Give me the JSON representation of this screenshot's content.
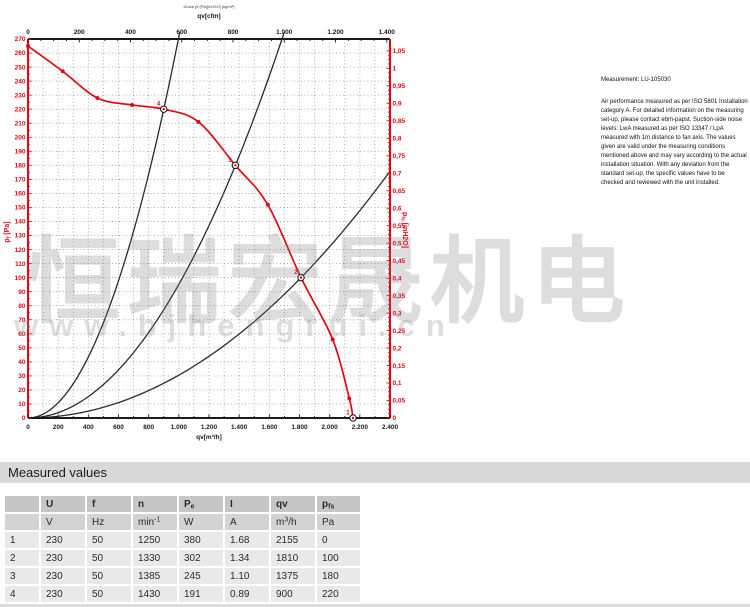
{
  "watermark": {
    "cn_text": "恒瑞宏晟机电",
    "url_text": "www.bjhengrui.cn"
  },
  "notes": {
    "measurement": "Measurement: LU-105030",
    "paragraph": "Air performance measured as per ISO 5801 Installation category A. For detailed information on the measuring set-up, please contact ebm-papst. Suction-side noise levels: LwA measured as per ISO 13347 / LpA measured with 1m distance to fan axis. The values given are valid under the measuring conditions mentioned above and may vary according to the actual installation situation. With any deviation from the standard set-up, the specific values have to be checked and reviewed with the unit installed."
  },
  "chart_data": {
    "type": "line",
    "header_note": "Druck pf (Pa)[inH2O] (kg/m³)",
    "x_top": {
      "label": "qv[cfm]",
      "min": 0,
      "max": 1400,
      "label_step": 200,
      "minor_step": 50
    },
    "x_bottom": {
      "label": "qv[m³/h]",
      "min": 0,
      "max": 2400,
      "label_step": 200,
      "minor_step": 100
    },
    "y_left": {
      "label_main": "p",
      "label_sub": "f",
      "label_unit": " [Pa]",
      "min": 0,
      "max": 270,
      "label_step": 10,
      "minor_step": 5
    },
    "y_right": {
      "label_main": "p",
      "label_sub": "fs",
      "label_unit": " [inH2O]",
      "min": 0,
      "max": 1.05,
      "label_step": 0.05,
      "minor_step": 0.0125
    },
    "unit_conversion": {
      "cfm_per_m3h": 0.588578,
      "pa_per_inH2O": 249.0889
    },
    "grid": {
      "x_step": 100,
      "y_step": 10
    },
    "fan_curve": {
      "points": [
        [
          0,
          265
        ],
        [
          230,
          247
        ],
        [
          460,
          228
        ],
        [
          690,
          223
        ],
        [
          900,
          220
        ],
        [
          1130,
          211
        ],
        [
          1375,
          180
        ],
        [
          1590,
          152
        ],
        [
          1810,
          100
        ],
        [
          2020,
          56
        ],
        [
          2130,
          14
        ],
        [
          2155,
          0
        ]
      ]
    },
    "measured_points": [
      {
        "label": "1",
        "qv": 2155,
        "pf": 0
      },
      {
        "label": "2",
        "qv": 1810,
        "pf": 100
      },
      {
        "label": "3",
        "qv": 1375,
        "pf": 180
      },
      {
        "label": "4",
        "qv": 900,
        "pf": 220
      }
    ],
    "system_curves": [
      {
        "through": [
          900,
          220
        ]
      },
      {
        "through": [
          1375,
          180
        ]
      },
      {
        "through": [
          1810,
          100
        ]
      }
    ],
    "colors": {
      "curve_red": "#e30613",
      "axis_red": "#e30613",
      "axis_black": "#1a1a1a",
      "grid_gray": "#8a8a8a",
      "system_black": "#2a2a2a"
    }
  },
  "table": {
    "title": "Measured values",
    "headers": [
      [],
      [
        {
          "t": "U"
        }
      ],
      [
        {
          "t": "f"
        }
      ],
      [
        {
          "t": "n"
        }
      ],
      [
        {
          "t": "P"
        },
        {
          "t": "e",
          "style": "sub"
        }
      ],
      [
        {
          "t": "I"
        }
      ],
      [
        {
          "t": "qv"
        }
      ],
      [
        {
          "t": "p"
        },
        {
          "t": "fs",
          "style": "sub"
        }
      ]
    ],
    "units": [
      [],
      [
        {
          "t": "V"
        }
      ],
      [
        {
          "t": "Hz"
        }
      ],
      [
        {
          "t": "min"
        },
        {
          "t": "-1",
          "style": "sup"
        }
      ],
      [
        {
          "t": "W"
        }
      ],
      [
        {
          "t": "A"
        }
      ],
      [
        {
          "t": "m"
        },
        {
          "t": "3",
          "style": "sup"
        },
        {
          "t": "/h"
        }
      ],
      [
        {
          "t": "Pa"
        }
      ]
    ],
    "rows": [
      [
        "1",
        "230",
        "50",
        "1250",
        "380",
        "1.68",
        "2155",
        "0"
      ],
      [
        "2",
        "230",
        "50",
        "1330",
        "302",
        "1.34",
        "1810",
        "100"
      ],
      [
        "3",
        "230",
        "50",
        "1385",
        "245",
        "1.10",
        "1375",
        "180"
      ],
      [
        "4",
        "230",
        "50",
        "1430",
        "191",
        "0.89",
        "900",
        "220"
      ]
    ]
  }
}
